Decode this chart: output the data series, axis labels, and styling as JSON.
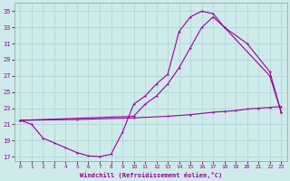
{
  "xlabel": "Windchill (Refroidissement éolien,°C)",
  "xlim": [
    -0.5,
    23.5
  ],
  "ylim": [
    16.5,
    36
  ],
  "yticks": [
    17,
    19,
    21,
    23,
    25,
    27,
    29,
    31,
    33,
    35
  ],
  "xticks": [
    0,
    1,
    2,
    3,
    4,
    5,
    6,
    7,
    8,
    9,
    10,
    11,
    12,
    13,
    14,
    15,
    16,
    17,
    18,
    19,
    20,
    21,
    22,
    23
  ],
  "bg_color": "#ceeaea",
  "line_color": "#990099",
  "grid_color": "#aad4d4",
  "line1_x": [
    0,
    1,
    2,
    3,
    4,
    5,
    6,
    7,
    8,
    9,
    10,
    11,
    12,
    13,
    14,
    15,
    16,
    17,
    18,
    22,
    23
  ],
  "line1_y": [
    21.5,
    21.0,
    19.3,
    18.7,
    18.1,
    17.5,
    17.1,
    17.0,
    17.3,
    20.0,
    23.5,
    24.5,
    26.0,
    27.2,
    32.5,
    34.3,
    35.0,
    34.7,
    33.0,
    27.0,
    22.5
  ],
  "line2_x": [
    0,
    10,
    11,
    12,
    13,
    14,
    15,
    16,
    17,
    18,
    20,
    22,
    23
  ],
  "line2_y": [
    21.5,
    22.0,
    23.5,
    24.5,
    26.0,
    28.0,
    30.5,
    33.0,
    34.3,
    33.0,
    31.0,
    27.5,
    22.5
  ],
  "line3_x": [
    0,
    5,
    10,
    13,
    15,
    17,
    18,
    19,
    20,
    21,
    22,
    23
  ],
  "line3_y": [
    21.5,
    21.6,
    21.8,
    22.0,
    22.2,
    22.5,
    22.6,
    22.7,
    22.9,
    23.0,
    23.1,
    23.2
  ]
}
